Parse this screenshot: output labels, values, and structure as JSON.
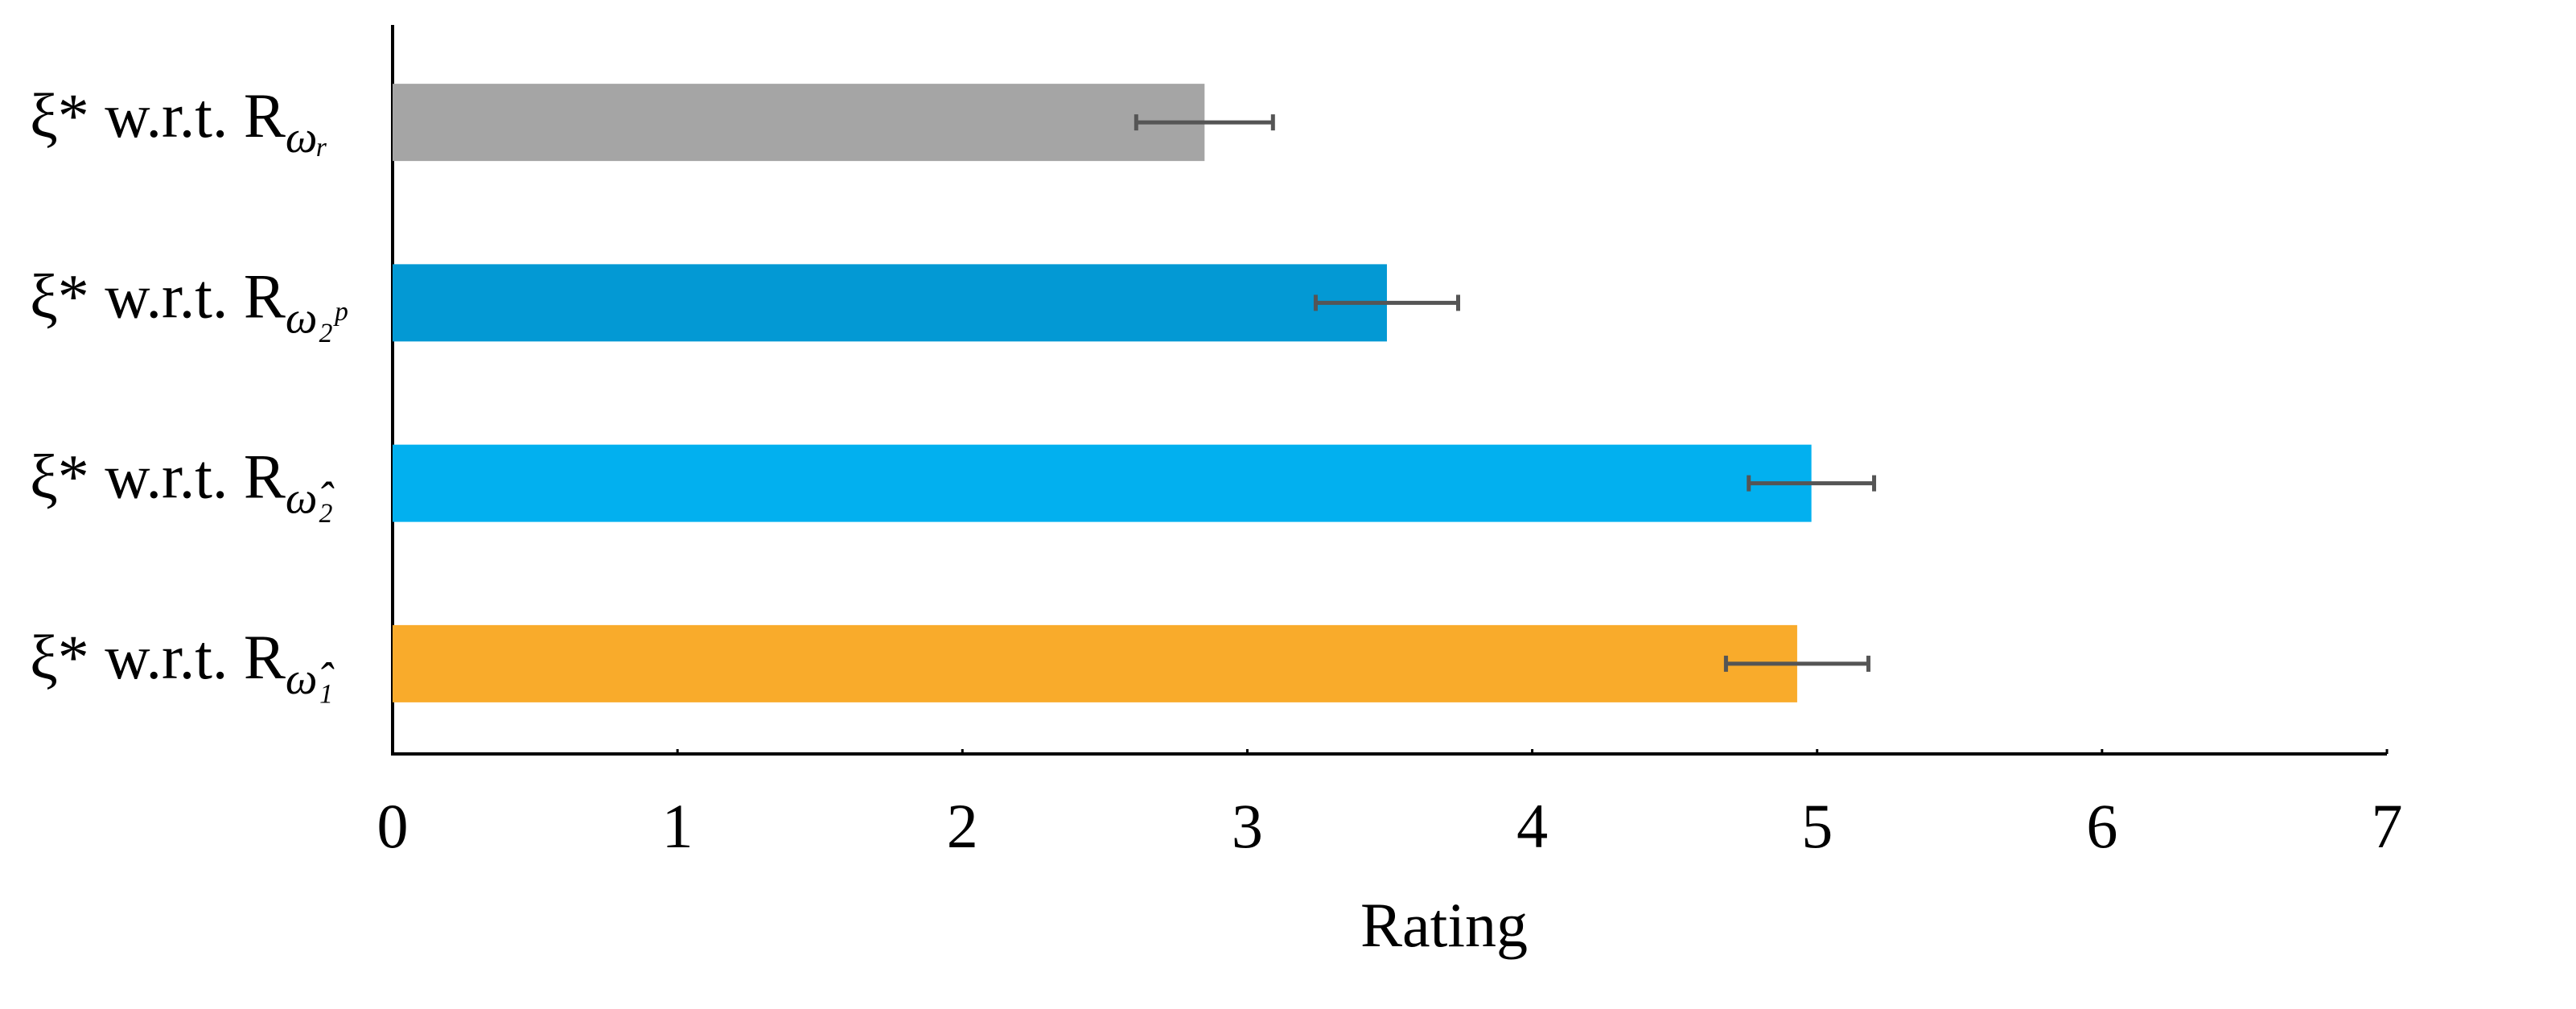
{
  "chart_data": {
    "type": "bar",
    "orientation": "horizontal",
    "categories": [
      {
        "label": "ξ* w.r.t. R",
        "subscript": "ωᵣ"
      },
      {
        "label": "ξ* w.r.t. R",
        "subscript": "ω₂ᵖ"
      },
      {
        "label": "ξ* w.r.t. R",
        "subscript": "ω̂₂"
      },
      {
        "label": "ξ* w.r.t. R",
        "subscript": "ω̂₁"
      }
    ],
    "values": [
      2.85,
      3.49,
      4.98,
      4.93
    ],
    "errors": [
      0.24,
      0.25,
      0.22,
      0.25
    ],
    "colors": [
      "#a5a5a5",
      "#0399d4",
      "#02b0ef",
      "#f9ab2b"
    ],
    "xlabel": "Rating",
    "xlim": [
      0,
      7
    ],
    "xticks": [
      0,
      1,
      2,
      3,
      4,
      5,
      6,
      7
    ]
  }
}
